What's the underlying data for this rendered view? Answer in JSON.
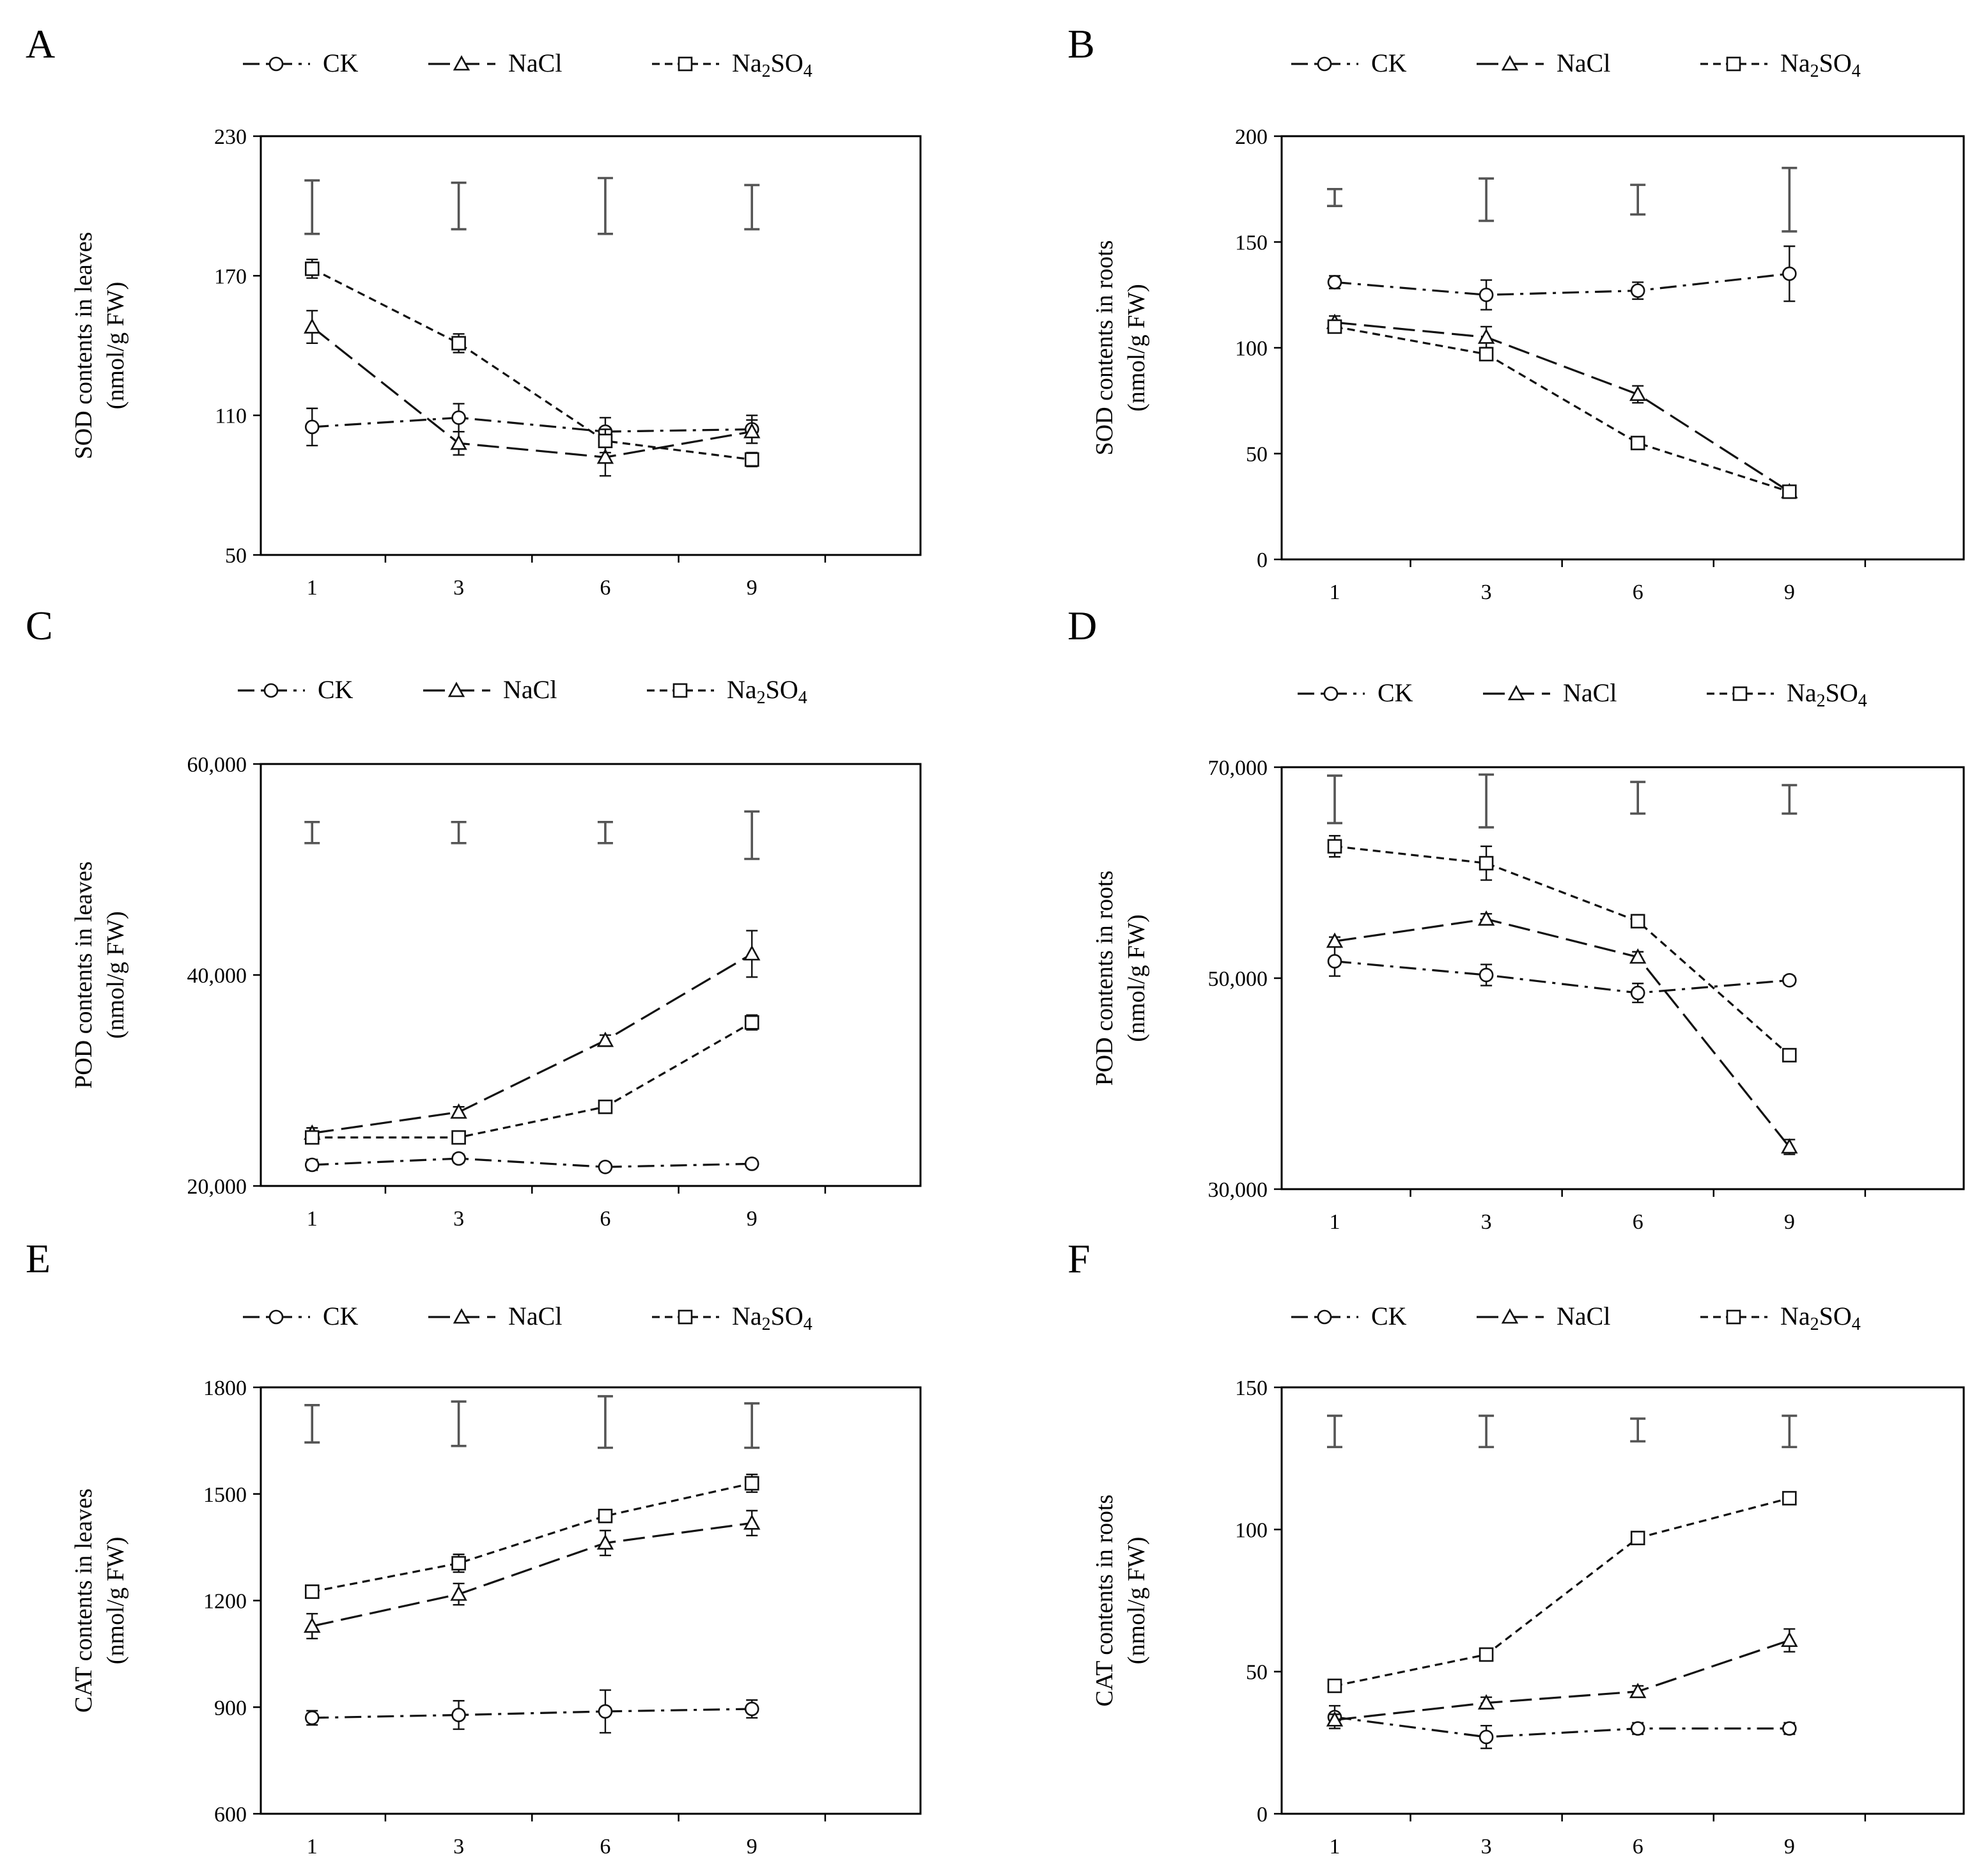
{
  "legend": {
    "series": [
      {
        "key": "CK",
        "label": "CK"
      },
      {
        "key": "NaCl",
        "label": "NaCl"
      },
      {
        "key": "Na2SO4",
        "label": "Na",
        "sub1": "2",
        "mid": "SO",
        "sub2": "4"
      }
    ]
  },
  "chart_data": [
    {
      "panel": "A",
      "type": "line",
      "title": "",
      "xlabel": "",
      "ylabel_line1": "SOD contents in leaves",
      "ylabel_line2": "(nmol/g FW)",
      "categories": [
        "1",
        "3",
        "6",
        "9"
      ],
      "ylim": [
        50,
        230
      ],
      "yticks": [
        50,
        110,
        170,
        230
      ],
      "ytick_labels": [
        "50",
        "110",
        "170",
        "230"
      ],
      "series": [
        {
          "name": "CK",
          "values": [
            105,
            109,
            103,
            104
          ],
          "errors": [
            8,
            6,
            6,
            6
          ]
        },
        {
          "name": "NaCl",
          "values": [
            148,
            98,
            92,
            103
          ],
          "errors": [
            7,
            5,
            8,
            5
          ]
        },
        {
          "name": "Na2SO4",
          "values": [
            173,
            141,
            99,
            91
          ],
          "errors": [
            4,
            4,
            5,
            3
          ]
        }
      ],
      "lsd_bars": [
        {
          "low": 188,
          "high": 211
        },
        {
          "low": 190,
          "high": 210
        },
        {
          "low": 188,
          "high": 212
        },
        {
          "low": 190,
          "high": 209
        }
      ]
    },
    {
      "panel": "B",
      "type": "line",
      "title": "",
      "xlabel": "",
      "ylabel_line1": "SOD contents in roots",
      "ylabel_line2": "(nmol/g FW)",
      "categories": [
        "1",
        "3",
        "6",
        "9"
      ],
      "ylim": [
        0,
        200
      ],
      "yticks": [
        0,
        50,
        100,
        150,
        200
      ],
      "ytick_labels": [
        "0",
        "50",
        "100",
        "150",
        "200"
      ],
      "series": [
        {
          "name": "CK",
          "values": [
            131,
            125,
            127,
            135
          ],
          "errors": [
            3,
            7,
            4,
            13
          ]
        },
        {
          "name": "NaCl",
          "values": [
            112,
            105,
            78,
            32
          ],
          "errors": [
            3,
            5,
            4,
            2
          ]
        },
        {
          "name": "Na2SO4",
          "values": [
            110,
            97,
            55,
            32
          ],
          "errors": [
            2,
            2,
            2,
            2
          ]
        }
      ],
      "lsd_bars": [
        {
          "low": 167,
          "high": 175
        },
        {
          "low": 160,
          "high": 180
        },
        {
          "low": 163,
          "high": 177
        },
        {
          "low": 155,
          "high": 185
        }
      ]
    },
    {
      "panel": "C",
      "type": "line",
      "title": "",
      "xlabel": "",
      "ylabel_line1": "POD contents in leaves",
      "ylabel_line2": "(nmol/g FW)",
      "categories": [
        "1",
        "3",
        "6",
        "9"
      ],
      "ylim": [
        20000,
        60000
      ],
      "yticks": [
        20000,
        40000,
        60000
      ],
      "ytick_labels": [
        "20,000",
        "40,000",
        "60,000"
      ],
      "series": [
        {
          "name": "CK",
          "values": [
            22000,
            22600,
            21800,
            22100
          ],
          "errors": [
            500,
            400,
            300,
            300
          ]
        },
        {
          "name": "NaCl",
          "values": [
            25000,
            27000,
            33800,
            42000
          ],
          "errors": [
            500,
            500,
            500,
            2200
          ]
        },
        {
          "name": "Na2SO4",
          "values": [
            24600,
            24600,
            27500,
            35500
          ],
          "errors": [
            500,
            400,
            500,
            700
          ]
        }
      ],
      "lsd_bars": [
        {
          "low": 52500,
          "high": 54500
        },
        {
          "low": 52500,
          "high": 54500
        },
        {
          "low": 52500,
          "high": 54500
        },
        {
          "low": 51000,
          "high": 55500
        }
      ]
    },
    {
      "panel": "D",
      "type": "line",
      "title": "",
      "xlabel": "",
      "ylabel_line1": "POD contents in roots",
      "ylabel_line2": "(nmol/g FW)",
      "categories": [
        "1",
        "3",
        "6",
        "9"
      ],
      "ylim": [
        30000,
        70000
      ],
      "yticks": [
        30000,
        50000,
        70000
      ],
      "ytick_labels": [
        "30,000",
        "50,000",
        "70,000"
      ],
      "series": [
        {
          "name": "CK",
          "values": [
            51600,
            50300,
            48600,
            49800
          ],
          "errors": [
            1400,
            1000,
            900,
            400
          ]
        },
        {
          "name": "NaCl",
          "values": [
            53500,
            55600,
            52000,
            34000
          ],
          "errors": [
            400,
            500,
            500,
            700
          ]
        },
        {
          "name": "Na2SO4",
          "values": [
            62500,
            60900,
            55400,
            42700
          ],
          "errors": [
            1000,
            1600,
            600,
            300
          ]
        }
      ],
      "lsd_bars": [
        {
          "low": 64700,
          "high": 69200
        },
        {
          "low": 64300,
          "high": 69300
        },
        {
          "low": 65600,
          "high": 68600
        },
        {
          "low": 65600,
          "high": 68300
        }
      ]
    },
    {
      "panel": "E",
      "type": "line",
      "title": "",
      "xlabel": "",
      "ylabel_line1": "CAT contents in leaves",
      "ylabel_line2": "(nmol/g FW)",
      "categories": [
        "1",
        "3",
        "6",
        "9"
      ],
      "ylim": [
        600,
        1800
      ],
      "yticks": [
        600,
        900,
        1200,
        1500,
        1800
      ],
      "ytick_labels": [
        "600",
        "900",
        "1200",
        "1500",
        "1800"
      ],
      "series": [
        {
          "name": "CK",
          "values": [
            870,
            878,
            888,
            895
          ],
          "errors": [
            20,
            40,
            60,
            25
          ]
        },
        {
          "name": "NaCl",
          "values": [
            1128,
            1218,
            1362,
            1418
          ],
          "errors": [
            35,
            30,
            35,
            35
          ]
        },
        {
          "name": "Na2SO4",
          "values": [
            1225,
            1305,
            1438,
            1530
          ],
          "errors": [
            15,
            25,
            15,
            25
          ]
        }
      ],
      "lsd_bars": [
        {
          "low": 1645,
          "high": 1750
        },
        {
          "low": 1635,
          "high": 1760
        },
        {
          "low": 1630,
          "high": 1775
        },
        {
          "low": 1630,
          "high": 1755
        }
      ]
    },
    {
      "panel": "F",
      "type": "line",
      "title": "",
      "xlabel": "",
      "ylabel_line1": "CAT contents in roots",
      "ylabel_line2": "(nmol/g FW)",
      "categories": [
        "1",
        "3",
        "6",
        "9"
      ],
      "ylim": [
        0,
        150
      ],
      "yticks": [
        0,
        50,
        100,
        150
      ],
      "ytick_labels": [
        "0",
        "50",
        "100",
        "150"
      ],
      "series": [
        {
          "name": "CK",
          "values": [
            34,
            27,
            30,
            30
          ],
          "errors": [
            4,
            4,
            2,
            2
          ]
        },
        {
          "name": "NaCl",
          "values": [
            33,
            39,
            43,
            61
          ],
          "errors": [
            2,
            2,
            2,
            4
          ]
        },
        {
          "name": "Na2SO4",
          "values": [
            45,
            56,
            97,
            111
          ],
          "errors": [
            2,
            2,
            2,
            2
          ]
        }
      ],
      "lsd_bars": [
        {
          "low": 129,
          "high": 140
        },
        {
          "low": 129,
          "high": 140
        },
        {
          "low": 131,
          "high": 139
        },
        {
          "low": 129,
          "high": 140
        }
      ]
    }
  ]
}
